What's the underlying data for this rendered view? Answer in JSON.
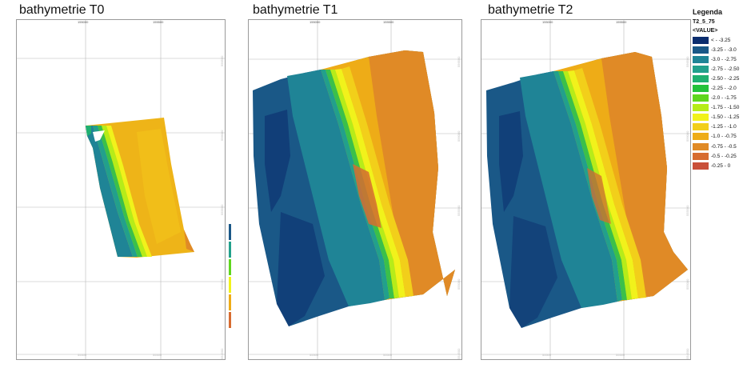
{
  "maps": [
    {
      "title": "bathymetrie T0",
      "x_ticks": [
        "155000",
        "155500"
      ],
      "x_ticks_faint": [
        "55500",
        "55500"
      ],
      "y_ticks": [
        "556500",
        "556000",
        "555500",
        "555000",
        "554500"
      ],
      "y_ticks_faint": [
        "556500",
        "556000",
        "555500",
        "555000",
        "554500"
      ]
    },
    {
      "title": "bathymetrie T1",
      "x_ticks": [
        "155000",
        "155500"
      ],
      "x_ticks_faint": [
        "55500",
        "55500"
      ],
      "y_ticks": [
        "556500",
        "556000",
        "555500",
        "555000",
        "554500"
      ],
      "y_ticks_faint": [
        "556500",
        "556000",
        "555500",
        "555000",
        "554500"
      ]
    },
    {
      "title": "bathymetrie T2",
      "x_ticks": [
        "155000",
        "155500"
      ],
      "x_ticks_faint": [
        "55500",
        "55500"
      ],
      "y_ticks": [
        "556500",
        "556000",
        "555500",
        "555000",
        "554500"
      ],
      "y_ticks_faint": [
        "556500",
        "556000",
        "555500",
        "555000",
        "554500"
      ]
    }
  ],
  "legend": {
    "title": "Legenda",
    "layer": "T2_5_75",
    "field": "<VALUE>",
    "classes": [
      {
        "label": "< - -3.25",
        "color": "#0b2d6e"
      },
      {
        "label": "-3.25 - -3.0",
        "color": "#1a5887"
      },
      {
        "label": "-3.0 - -2.75",
        "color": "#1f8496"
      },
      {
        "label": "-2.75 - -2.50",
        "color": "#22a08c"
      },
      {
        "label": "-2.50 - -2.25",
        "color": "#1fb070"
      },
      {
        "label": "-2.25 - -2.0",
        "color": "#23c23a"
      },
      {
        "label": "-2.0 - -1.75",
        "color": "#5fd61e"
      },
      {
        "label": "-1.75 - -1.50",
        "color": "#b6ec19"
      },
      {
        "label": "-1.50 - -1.25",
        "color": "#f1f21b"
      },
      {
        "label": "-1.25 - -1.0",
        "color": "#f2cf1a"
      },
      {
        "label": "-1.0 - -0.75",
        "color": "#eeac17"
      },
      {
        "label": "-0.75 - -0.5",
        "color": "#e08a26"
      },
      {
        "label": "-0.5 - -0.25",
        "color": "#d76c30"
      },
      {
        "label": "-0.25 - 0",
        "color": "#c9503a"
      }
    ]
  }
}
